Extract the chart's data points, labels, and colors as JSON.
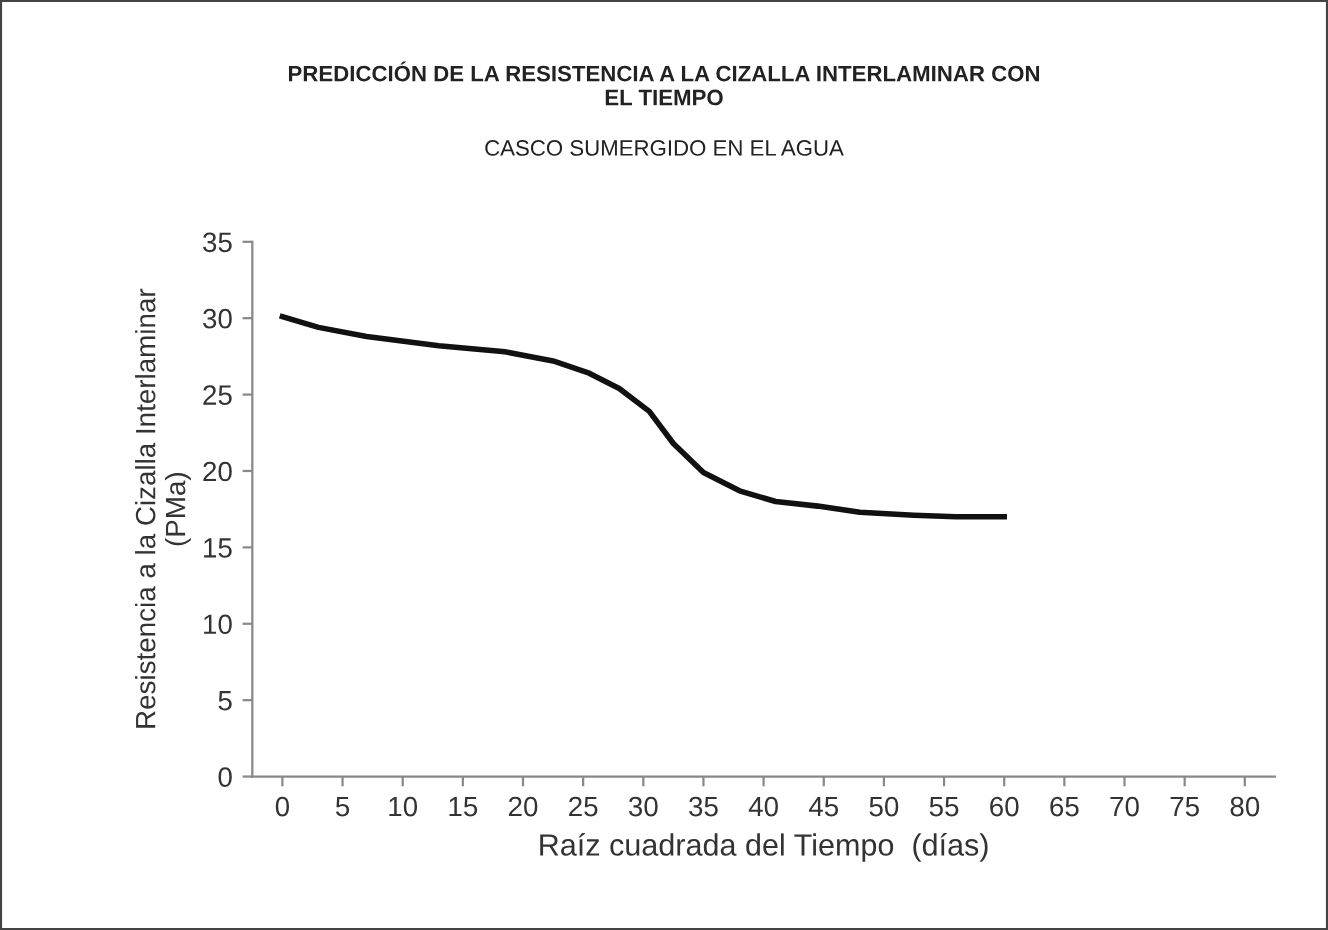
{
  "chart_data": {
    "type": "line",
    "title": "PREDICCIÓN DE LA RESISTENCIA A LA CIZALLA INTERLAMINAR CON\nEL TIEMPO",
    "subtitle": "CASCO SUMERGIDO EN EL AGUA",
    "xlabel": "Raíz cuadrada del Tiempo  (días)",
    "ylabel": "Resistencia a la Cizalla Interlaminar\n(PMa)",
    "series": [
      {
        "color": "#111111",
        "x": [
          0,
          3,
          7,
          13,
          18.5,
          22.5,
          25.5,
          28,
          30.5,
          32.5,
          35,
          38,
          41,
          44.5,
          48,
          52.5,
          56,
          60
        ],
        "values": [
          30.1,
          29.4,
          28.8,
          28.2,
          27.8,
          27.2,
          26.4,
          25.4,
          23.9,
          21.8,
          19.9,
          18.7,
          18.0,
          17.7,
          17.3,
          17.1,
          17.0,
          17.0
        ]
      }
    ],
    "xlim": [
      -2.5,
      82.5
    ],
    "xticks": [
      0,
      5,
      10,
      15,
      20,
      25,
      30,
      35,
      40,
      45,
      50,
      55,
      60,
      65,
      70,
      75,
      80
    ],
    "ylim": [
      0,
      35
    ],
    "yticks": [
      0,
      5,
      10,
      15,
      20,
      25,
      30,
      35
    ],
    "grid": false,
    "legend": false,
    "marker": "none",
    "line_style": "solid"
  }
}
